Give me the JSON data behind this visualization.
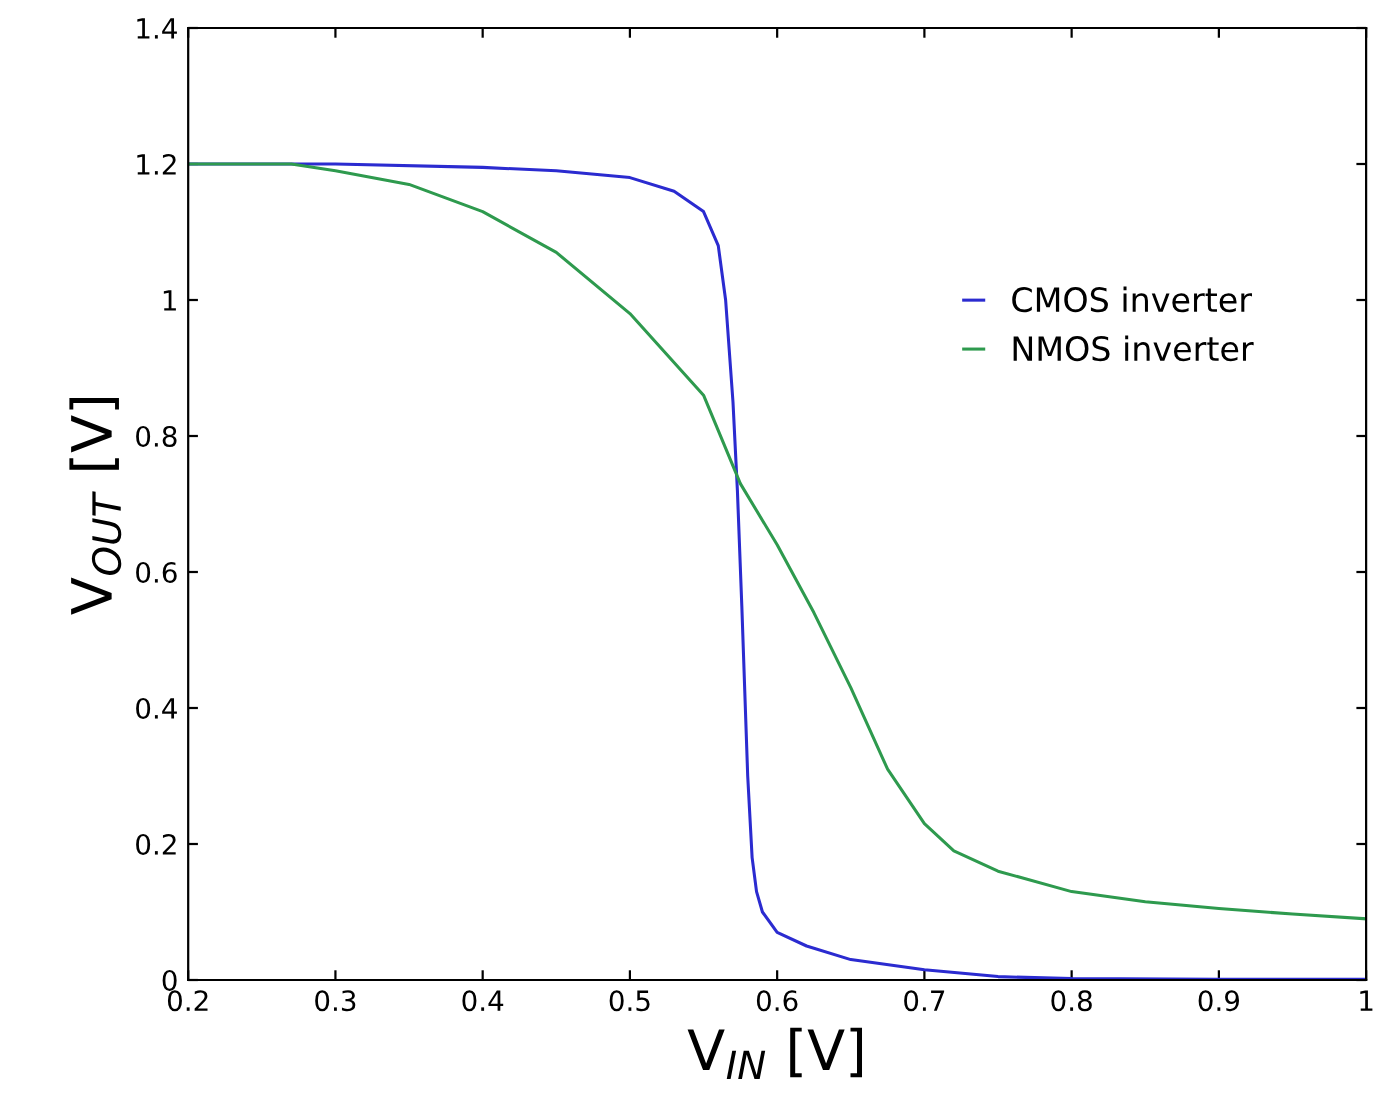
{
  "chart_data": {
    "type": "line",
    "xlabel": "V$_{IN}$ [V]",
    "ylabel": "V$_{OUT}$ [V]",
    "xlim": [
      0.2,
      1.0
    ],
    "ylim": [
      0,
      1.4
    ],
    "xticks": [
      0.2,
      0.3,
      0.4,
      0.5,
      0.6,
      0.7,
      0.8,
      0.9,
      1
    ],
    "yticks": [
      0,
      0.2,
      0.4,
      0.6,
      0.8,
      1,
      1.2,
      1.4
    ],
    "legend": "top right",
    "grid": false,
    "series": [
      {
        "name": "CMOS inverter",
        "color": "#2b2bd0",
        "x": [
          0.2,
          0.3,
          0.4,
          0.45,
          0.5,
          0.53,
          0.55,
          0.56,
          0.565,
          0.57,
          0.573,
          0.576,
          0.58,
          0.583,
          0.586,
          0.59,
          0.6,
          0.62,
          0.65,
          0.7,
          0.75,
          0.8,
          0.9,
          1.0
        ],
        "values": [
          1.2,
          1.2,
          1.195,
          1.19,
          1.18,
          1.16,
          1.13,
          1.08,
          1.0,
          0.85,
          0.72,
          0.55,
          0.3,
          0.18,
          0.13,
          0.1,
          0.07,
          0.05,
          0.03,
          0.015,
          0.005,
          0.002,
          0.001,
          0.001
        ]
      },
      {
        "name": "NMOS inverter",
        "color": "#2e9a4e",
        "x": [
          0.2,
          0.27,
          0.3,
          0.35,
          0.4,
          0.45,
          0.5,
          0.55,
          0.575,
          0.6,
          0.625,
          0.65,
          0.675,
          0.7,
          0.72,
          0.75,
          0.8,
          0.85,
          0.9,
          0.95,
          1.0
        ],
        "values": [
          1.2,
          1.2,
          1.19,
          1.17,
          1.13,
          1.07,
          0.98,
          0.86,
          0.73,
          0.64,
          0.54,
          0.43,
          0.31,
          0.23,
          0.19,
          0.16,
          0.13,
          0.115,
          0.105,
          0.097,
          0.09
        ]
      }
    ]
  }
}
